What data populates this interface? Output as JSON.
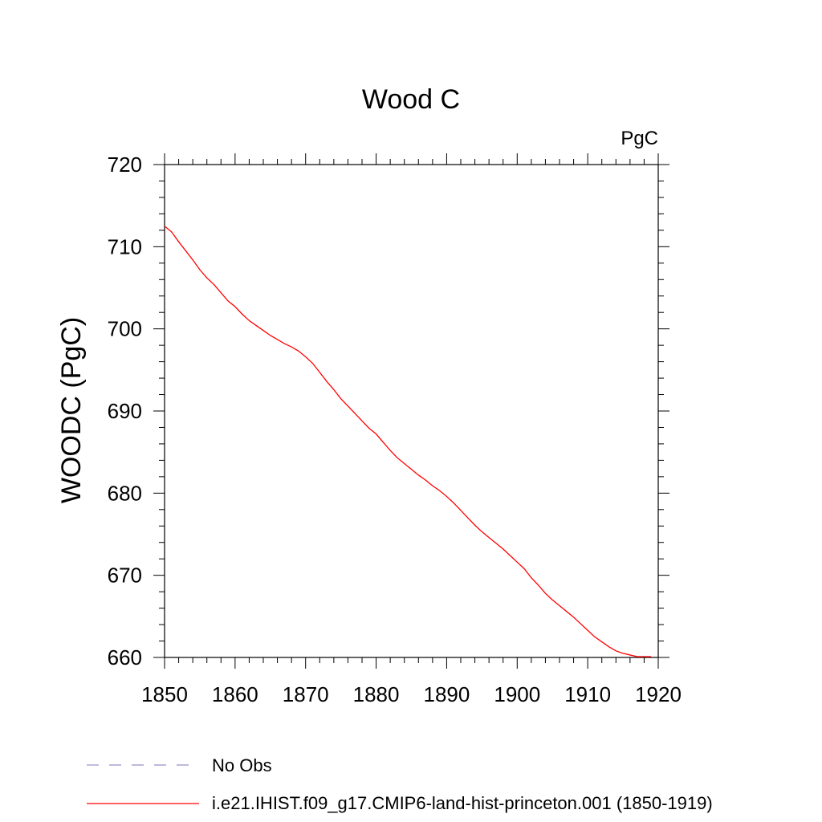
{
  "chart_data": {
    "type": "line",
    "title": "Wood C",
    "units": "PgC",
    "ylabel": "WOODC  (PgC)",
    "xlabel": "",
    "xlim": [
      1850,
      1920
    ],
    "ylim": [
      660,
      720
    ],
    "x_ticks": [
      1850,
      1860,
      1870,
      1880,
      1890,
      1900,
      1910,
      1920
    ],
    "y_ticks": [
      660,
      670,
      680,
      690,
      700,
      710,
      720
    ],
    "x_tick_labels": [
      "1850",
      "1860",
      "1870",
      "1880",
      "1890",
      "1900",
      "1910",
      "1920"
    ],
    "y_tick_labels": [
      "660",
      "670",
      "680",
      "690",
      "700",
      "710",
      "720"
    ],
    "grid": false,
    "legend_position": "bottom-left",
    "series": [
      {
        "name": "i.e21.IHIST.f09_g17.CMIP6-land-hist-princeton.001 (1850-1919)",
        "color": "#ff0000",
        "style": "solid",
        "x": [
          1850,
          1851,
          1852,
          1853,
          1854,
          1855,
          1856,
          1857,
          1858,
          1859,
          1860,
          1861,
          1862,
          1863,
          1864,
          1865,
          1866,
          1867,
          1868,
          1869,
          1870,
          1871,
          1872,
          1873,
          1874,
          1875,
          1876,
          1877,
          1878,
          1879,
          1880,
          1881,
          1882,
          1883,
          1884,
          1885,
          1886,
          1887,
          1888,
          1889,
          1890,
          1891,
          1892,
          1893,
          1894,
          1895,
          1896,
          1897,
          1898,
          1899,
          1900,
          1901,
          1902,
          1903,
          1904,
          1905,
          1906,
          1907,
          1908,
          1909,
          1910,
          1911,
          1912,
          1913,
          1914,
          1915,
          1916,
          1917,
          1918,
          1919
        ],
        "y": [
          712.5,
          711.8,
          710.6,
          709.5,
          708.4,
          707.2,
          706.2,
          705.4,
          704.4,
          703.4,
          702.7,
          701.8,
          701.0,
          700.4,
          699.8,
          699.2,
          698.7,
          698.2,
          697.8,
          697.3,
          696.6,
          695.8,
          694.7,
          693.6,
          692.6,
          691.5,
          690.6,
          689.7,
          688.8,
          687.9,
          687.2,
          686.2,
          685.2,
          684.3,
          683.6,
          682.9,
          682.2,
          681.6,
          680.9,
          680.3,
          679.6,
          678.8,
          677.9,
          677.0,
          676.1,
          675.3,
          674.6,
          673.9,
          673.2,
          672.4,
          671.6,
          670.8,
          669.7,
          668.8,
          667.8,
          667.0,
          666.3,
          665.6,
          664.9,
          664.1,
          663.3,
          662.5,
          661.9,
          661.3,
          660.8,
          660.5,
          660.3,
          660.1,
          660.1,
          660.1
        ]
      },
      {
        "name": "No Obs",
        "color": "#9a8fc8",
        "style": "dashed",
        "x": [],
        "y": []
      }
    ]
  }
}
